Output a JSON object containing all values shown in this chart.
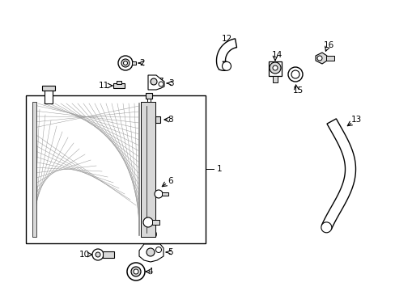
{
  "bg_color": "#ffffff",
  "line_color": "#000000",
  "gray_fill": "#d8d8d8",
  "fig_width": 4.89,
  "fig_height": 3.6,
  "dpi": 100
}
